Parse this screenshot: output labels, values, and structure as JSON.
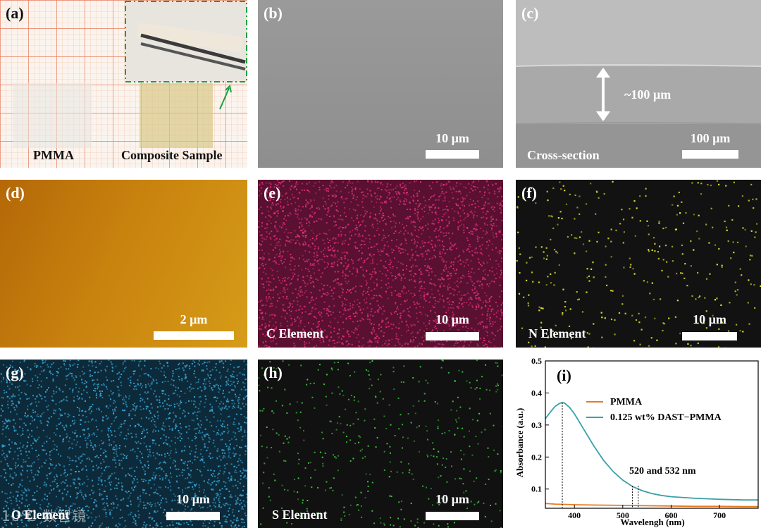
{
  "panels": {
    "a": {
      "label": "(a)",
      "left_caption": "PMMA",
      "right_caption": "Composite Sample"
    },
    "b": {
      "label": "(b)",
      "scale": "10 µm"
    },
    "c": {
      "label": "(c)",
      "scale": "100 µm",
      "thickness": "~100 µm",
      "caption": "Cross-section"
    },
    "d": {
      "label": "(d)",
      "scale": "2 µm"
    },
    "e": {
      "label": "(e)",
      "scale": "10 µm",
      "caption": "C Element",
      "color": "#e0307a"
    },
    "f": {
      "label": "(f)",
      "scale": "10 µm",
      "caption": "N Element",
      "color": "#e8e830"
    },
    "g": {
      "label": "(g)",
      "scale": "10 µm",
      "caption": "O Element",
      "color": "#3aa8d8"
    },
    "h": {
      "label": "(h)",
      "scale": "10 µm",
      "caption": "S Element",
      "color": "#40d040"
    },
    "i": {
      "label": "(i)"
    }
  },
  "watermark": "10℃ 数智镜",
  "chart_data": {
    "type": "line",
    "xlabel": "Wavelengh (nm)",
    "ylabel": "Absorbance (a.u.)",
    "xlim": [
      340,
      780
    ],
    "ylim": [
      0.04,
      0.5
    ],
    "xticks": [
      400,
      500,
      600,
      700
    ],
    "yticks": [
      0.1,
      0.2,
      0.3,
      0.4,
      0.5
    ],
    "legend": "top-right",
    "annotation": "520 and 532 nm",
    "marker_lines_nm": [
      375,
      520,
      532
    ],
    "series": [
      {
        "name": "PMMA",
        "color": "#e87b1e",
        "x": [
          340,
          360,
          380,
          400,
          450,
          500,
          550,
          600,
          650,
          700,
          750,
          780
        ],
        "y": [
          0.055,
          0.053,
          0.052,
          0.051,
          0.05,
          0.049,
          0.048,
          0.047,
          0.046,
          0.046,
          0.045,
          0.045
        ]
      },
      {
        "name": "0.125 wt% DAST−PMMA",
        "color": "#3aa0a8",
        "x": [
          340,
          350,
          360,
          370,
          375,
          380,
          390,
          400,
          420,
          440,
          460,
          480,
          500,
          520,
          540,
          560,
          580,
          600,
          650,
          700,
          750,
          780
        ],
        "y": [
          0.32,
          0.34,
          0.358,
          0.368,
          0.37,
          0.368,
          0.355,
          0.335,
          0.285,
          0.235,
          0.19,
          0.155,
          0.128,
          0.108,
          0.095,
          0.086,
          0.08,
          0.076,
          0.071,
          0.068,
          0.066,
          0.066
        ]
      }
    ]
  }
}
